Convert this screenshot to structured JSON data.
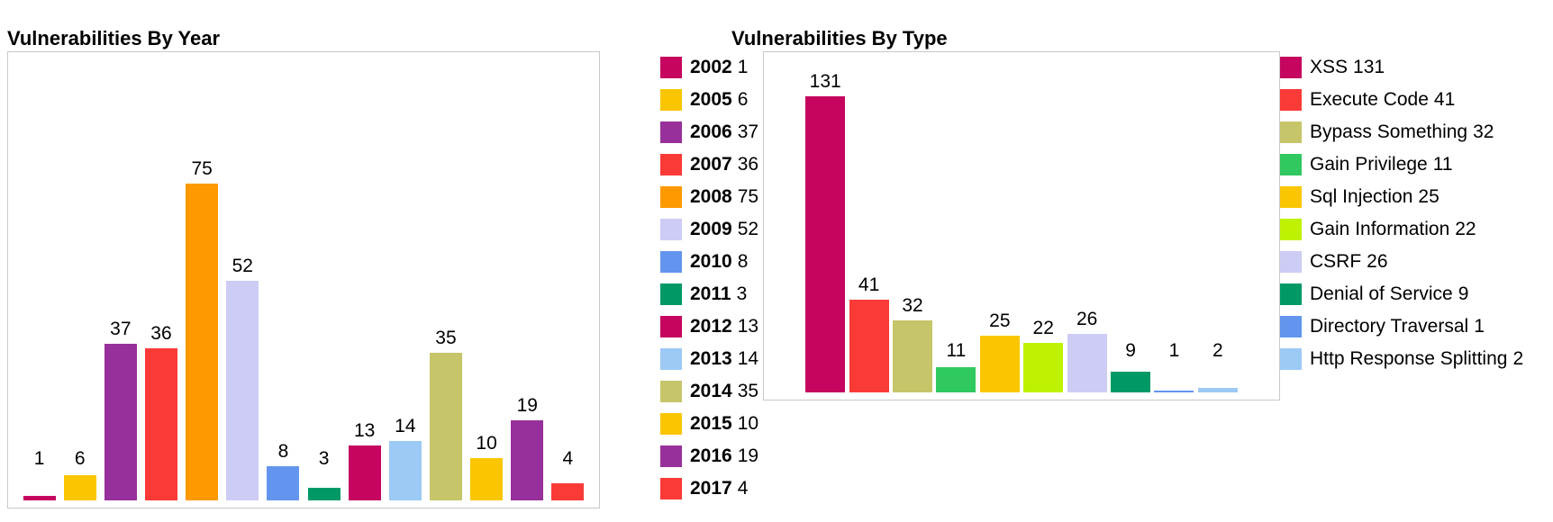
{
  "chart_data": [
    {
      "type": "bar",
      "title": "Vulnerabilities By Year",
      "legend_position": "right",
      "bar_value_labels": true,
      "legend_label_bold": true,
      "categories": [
        "2002",
        "2005",
        "2006",
        "2007",
        "2008",
        "2009",
        "2010",
        "2011",
        "2012",
        "2013",
        "2014",
        "2015",
        "2016",
        "2017"
      ],
      "values": [
        1,
        6,
        37,
        36,
        75,
        52,
        8,
        3,
        13,
        14,
        35,
        10,
        19,
        4
      ],
      "colors": [
        "#C5055F",
        "#FAC602",
        "#97309B",
        "#FA3A36",
        "#FF9900",
        "#CCCCF5",
        "#6395EE",
        "#009966",
        "#C5055F",
        "#9CCAF5",
        "#C6C56A",
        "#FAC602",
        "#97309B",
        "#FA3A36"
      ]
    },
    {
      "type": "bar",
      "title": "Vulnerabilities By Type",
      "legend_position": "right",
      "bar_value_labels": true,
      "legend_label_bold": false,
      "categories": [
        "XSS",
        "Execute Code",
        "Bypass Something",
        "Gain Privilege",
        "Sql Injection",
        "Gain Information",
        "CSRF",
        "Denial of Service",
        "Directory Traversal",
        "Http Response Splitting"
      ],
      "values": [
        131,
        41,
        32,
        11,
        25,
        22,
        26,
        9,
        1,
        2
      ],
      "colors": [
        "#C5055F",
        "#FA3A36",
        "#C6C56A",
        "#30C960",
        "#FAC602",
        "#BEF202",
        "#CCCCF5",
        "#009966",
        "#6395EE",
        "#9CCAF5"
      ]
    }
  ]
}
